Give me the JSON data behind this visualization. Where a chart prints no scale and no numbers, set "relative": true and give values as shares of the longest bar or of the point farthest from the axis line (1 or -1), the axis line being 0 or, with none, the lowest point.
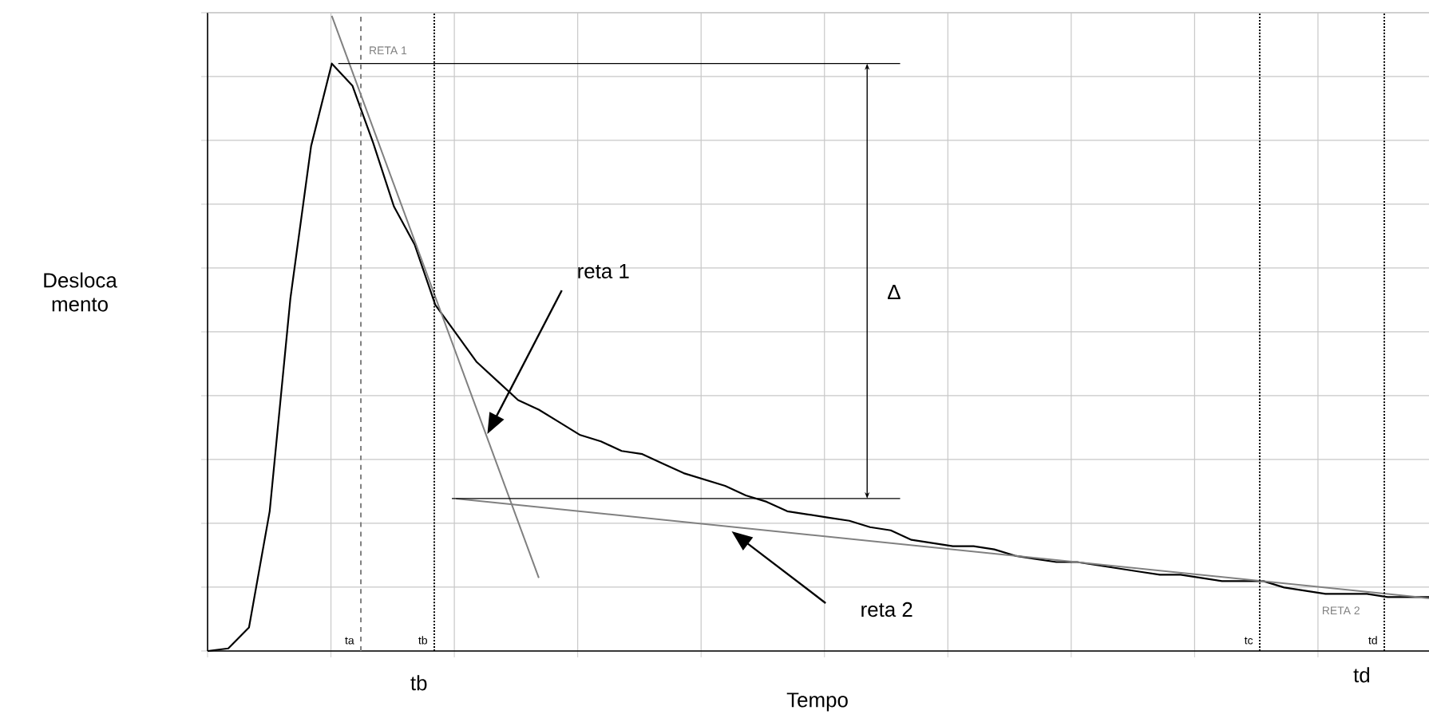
{
  "chart_data": {
    "type": "line",
    "relative": true,
    "xlabel": "Tempo",
    "ylabel": "Desloca mento",
    "grid": true,
    "tick_labels": false,
    "categories": [
      null,
      null,
      null,
      null,
      null,
      null,
      null,
      null,
      null,
      null,
      null,
      null,
      null,
      null,
      null,
      null,
      null,
      null,
      null,
      null,
      null,
      null,
      null,
      null,
      null,
      null,
      null,
      null,
      null,
      null,
      null,
      null,
      null,
      null,
      null,
      null,
      null,
      null,
      null,
      null,
      null,
      null,
      null,
      null,
      null,
      null,
      null,
      null,
      null,
      null,
      null,
      null,
      null,
      null,
      null,
      null,
      null,
      null,
      null,
      null
    ],
    "series": [
      {
        "color": "#000000",
        "values": [
          0,
          0.004,
          0.037,
          0.22,
          0.555,
          0.795,
          0.925,
          0.89,
          0.8,
          0.7,
          0.64,
          0.545,
          0.5,
          0.455,
          0.425,
          0.395,
          0.38,
          0.36,
          0.34,
          0.33,
          0.315,
          0.31,
          0.295,
          0.28,
          0.27,
          0.26,
          0.245,
          0.235,
          0.22,
          0.215,
          0.21,
          0.205,
          0.195,
          0.19,
          0.175,
          0.17,
          0.165,
          0.165,
          0.16,
          0.15,
          0.145,
          0.14,
          0.14,
          0.135,
          0.13,
          0.125,
          0.12,
          0.12,
          0.115,
          0.11,
          0.11,
          0.11,
          0.1,
          0.095,
          0.09,
          0.09,
          0.09,
          0.085,
          0.085,
          0.085
        ]
      },
      {
        "name": "RETA 1",
        "type": "line",
        "color": "#808080",
        "values": [
          null,
          null,
          null,
          null,
          null,
          null,
          1.0,
          null,
          null,
          null,
          null,
          null,
          null,
          null,
          null,
          null,
          0.115,
          null,
          null,
          null,
          null,
          null,
          null,
          null,
          null,
          null,
          null,
          null,
          null,
          null,
          null,
          null,
          null,
          null,
          null,
          null,
          null,
          null,
          null,
          null,
          null,
          null,
          null,
          null,
          null,
          null,
          null,
          null,
          null,
          null,
          null,
          null,
          null,
          null,
          null,
          null,
          null,
          null,
          null,
          null
        ]
      },
      {
        "name": "RETA 2",
        "type": "line",
        "color": "#808080",
        "values": [
          null,
          null,
          null,
          null,
          null,
          null,
          null,
          null,
          null,
          null,
          null,
          null,
          0.24,
          null,
          null,
          null,
          null,
          null,
          null,
          null,
          null,
          null,
          null,
          null,
          null,
          null,
          null,
          null,
          null,
          null,
          null,
          null,
          null,
          null,
          null,
          null,
          null,
          null,
          null,
          null,
          null,
          null,
          null,
          null,
          null,
          null,
          null,
          null,
          null,
          null,
          null,
          null,
          null,
          null,
          null,
          null,
          null,
          null,
          null,
          0.083
        ]
      }
    ],
    "ref_lines": [
      {
        "axis": "y",
        "value": 0.925,
        "color": "#000000"
      },
      {
        "axis": "y",
        "value": 0.24,
        "color": "#000000"
      }
    ],
    "annotations": [
      "reta 1",
      "reta 2",
      "Δ",
      "tb",
      "td",
      "ta",
      "tb",
      "tc",
      "td"
    ]
  }
}
